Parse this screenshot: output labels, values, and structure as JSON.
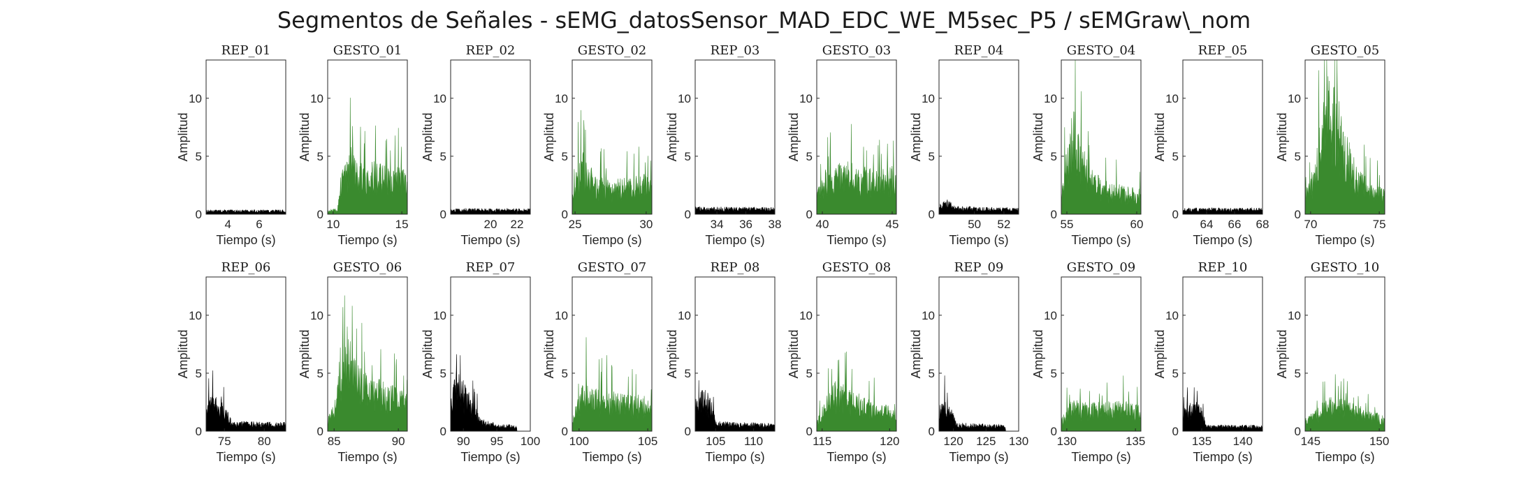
{
  "figure": {
    "title": "Segmentos de Señales - sEMG_datosSensor_MAD_EDC_WE_M5sec_P5 / sEMGraw\\_nom"
  },
  "colors": {
    "rep": "#000000",
    "gesto": "#3a8a2e",
    "axis": "#262626"
  },
  "chart_data": [
    {
      "type": "area",
      "title": "REP_01",
      "xlabel": "Tiempo (s)",
      "ylabel": "Amplitud",
      "xlim": [
        2.6,
        7.7
      ],
      "ylim": [
        0,
        13.3
      ],
      "xticks": [
        4,
        6
      ],
      "yticks": [
        0,
        5,
        10
      ],
      "color": "rep",
      "profile": [
        [
          2.6,
          0.35
        ],
        [
          7.7,
          0.35
        ]
      ]
    },
    {
      "type": "area",
      "title": "GESTO_01",
      "xlabel": "Tiempo (s)",
      "ylabel": "Amplitud",
      "xlim": [
        9.6,
        15.4
      ],
      "ylim": [
        0,
        13.3
      ],
      "xticks": [
        10,
        15
      ],
      "yticks": [
        0,
        5,
        10
      ],
      "color": "gesto",
      "profile": [
        [
          9.6,
          0.3
        ],
        [
          10.3,
          0.5
        ],
        [
          10.6,
          3.5
        ],
        [
          11.0,
          4.2
        ],
        [
          11.3,
          5.5
        ],
        [
          12.0,
          4.0
        ],
        [
          13.0,
          4.2
        ],
        [
          14.0,
          3.8
        ],
        [
          15.0,
          4.0
        ],
        [
          15.4,
          3.0
        ]
      ]
    },
    {
      "type": "area",
      "title": "REP_02",
      "xlabel": "Tiempo (s)",
      "ylabel": "Amplitud",
      "xlim": [
        17.0,
        23.0
      ],
      "ylim": [
        0,
        13.3
      ],
      "xticks": [
        20,
        22
      ],
      "yticks": [
        0,
        5,
        10
      ],
      "color": "rep",
      "profile": [
        [
          17.0,
          0.45
        ],
        [
          23.0,
          0.45
        ]
      ]
    },
    {
      "type": "area",
      "title": "GESTO_02",
      "xlabel": "Tiempo (s)",
      "ylabel": "Amplitud",
      "xlim": [
        24.8,
        30.4
      ],
      "ylim": [
        0,
        13.3
      ],
      "xticks": [
        25,
        30
      ],
      "yticks": [
        0,
        5,
        10
      ],
      "color": "gesto",
      "profile": [
        [
          24.8,
          2.0
        ],
        [
          25.3,
          4.5
        ],
        [
          25.6,
          5.0
        ],
        [
          26.5,
          3.0
        ],
        [
          28.0,
          2.8
        ],
        [
          30.0,
          3.2
        ],
        [
          30.4,
          2.5
        ]
      ]
    },
    {
      "type": "area",
      "title": "REP_03",
      "xlabel": "Tiempo (s)",
      "ylabel": "Amplitud",
      "xlim": [
        32.5,
        38.0
      ],
      "ylim": [
        0,
        13.3
      ],
      "xticks": [
        34,
        36,
        38
      ],
      "yticks": [
        0,
        5,
        10
      ],
      "color": "rep",
      "profile": [
        [
          32.5,
          0.6
        ],
        [
          38.0,
          0.55
        ]
      ]
    },
    {
      "type": "area",
      "title": "GESTO_03",
      "xlabel": "Tiempo (s)",
      "ylabel": "Amplitud",
      "xlim": [
        39.6,
        45.3
      ],
      "ylim": [
        0,
        13.3
      ],
      "xticks": [
        40,
        45
      ],
      "yticks": [
        0,
        5,
        10
      ],
      "color": "gesto",
      "profile": [
        [
          39.6,
          1.5
        ],
        [
          40.0,
          3.5
        ],
        [
          41.0,
          4.0
        ],
        [
          42.0,
          4.3
        ],
        [
          43.0,
          3.8
        ],
        [
          44.0,
          3.5
        ],
        [
          45.0,
          3.8
        ],
        [
          45.3,
          3.0
        ]
      ]
    },
    {
      "type": "area",
      "title": "REP_04",
      "xlabel": "Tiempo (s)",
      "ylabel": "Amplitud",
      "xlim": [
        47.6,
        53.0
      ],
      "ylim": [
        0,
        13.3
      ],
      "xticks": [
        50,
        52
      ],
      "yticks": [
        0,
        5,
        10
      ],
      "color": "rep",
      "profile": [
        [
          47.6,
          0.8
        ],
        [
          48.1,
          1.3
        ],
        [
          48.6,
          0.7
        ],
        [
          50.0,
          0.6
        ],
        [
          53.0,
          0.5
        ]
      ]
    },
    {
      "type": "area",
      "title": "GESTO_04",
      "xlabel": "Tiempo (s)",
      "ylabel": "Amplitud",
      "xlim": [
        54.6,
        60.3
      ],
      "ylim": [
        0,
        13.3
      ],
      "xticks": [
        55,
        60
      ],
      "yticks": [
        0,
        5,
        10
      ],
      "color": "gesto",
      "profile": [
        [
          54.6,
          2.0
        ],
        [
          55.2,
          7.0
        ],
        [
          55.5,
          10.0
        ],
        [
          55.8,
          7.0
        ],
        [
          56.5,
          4.0
        ],
        [
          58.0,
          2.5
        ],
        [
          60.3,
          2.0
        ]
      ]
    },
    {
      "type": "area",
      "title": "REP_05",
      "xlabel": "Tiempo (s)",
      "ylabel": "Amplitud",
      "xlim": [
        62.3,
        68.0
      ],
      "ylim": [
        0,
        13.3
      ],
      "xticks": [
        64,
        66,
        68
      ],
      "yticks": [
        0,
        5,
        10
      ],
      "color": "rep",
      "profile": [
        [
          62.3,
          0.5
        ],
        [
          68.0,
          0.5
        ]
      ]
    },
    {
      "type": "area",
      "title": "GESTO_05",
      "xlabel": "Tiempo (s)",
      "ylabel": "Amplitud",
      "xlim": [
        69.6,
        75.4
      ],
      "ylim": [
        0,
        13.3
      ],
      "xticks": [
        70,
        75
      ],
      "yticks": [
        0,
        5,
        10
      ],
      "color": "gesto",
      "profile": [
        [
          69.6,
          2.0
        ],
        [
          70.3,
          4.0
        ],
        [
          70.8,
          9.0
        ],
        [
          71.3,
          11.0
        ],
        [
          71.8,
          10.0
        ],
        [
          72.5,
          7.0
        ],
        [
          73.5,
          3.5
        ],
        [
          75.4,
          2.0
        ]
      ]
    },
    {
      "type": "area",
      "title": "REP_06",
      "xlabel": "Tiempo (s)",
      "ylabel": "Amplitud",
      "xlim": [
        72.7,
        82.7
      ],
      "ylim": [
        0,
        13.3
      ],
      "xticks": [
        75,
        80
      ],
      "yticks": [
        0,
        5,
        10
      ],
      "color": "rep",
      "profile": [
        [
          72.7,
          2.8
        ],
        [
          74.5,
          3.0
        ],
        [
          75.3,
          2.0
        ],
        [
          76.0,
          0.8
        ],
        [
          82.7,
          0.7
        ]
      ]
    },
    {
      "type": "area",
      "title": "GESTO_06",
      "xlabel": "Tiempo (s)",
      "ylabel": "Amplitud",
      "xlim": [
        84.5,
        90.7
      ],
      "ylim": [
        0,
        13.3
      ],
      "xticks": [
        85,
        90
      ],
      "yticks": [
        0,
        5,
        10
      ],
      "color": "gesto",
      "profile": [
        [
          84.5,
          1.0
        ],
        [
          85.2,
          3.0
        ],
        [
          85.5,
          7.0
        ],
        [
          86.0,
          8.5
        ],
        [
          86.5,
          6.0
        ],
        [
          87.5,
          4.5
        ],
        [
          89.0,
          4.0
        ],
        [
          90.7,
          3.0
        ]
      ]
    },
    {
      "type": "area",
      "title": "REP_07",
      "xlabel": "Tiempo (s)",
      "ylabel": "Amplitud",
      "xlim": [
        88.1,
        100.0
      ],
      "ylim": [
        0,
        13.3
      ],
      "xticks": [
        90,
        95,
        100
      ],
      "yticks": [
        0,
        5,
        10
      ],
      "color": "rep",
      "profile": [
        [
          88.1,
          3.0
        ],
        [
          89.0,
          5.0
        ],
        [
          90.0,
          4.0
        ],
        [
          91.5,
          2.5
        ],
        [
          92.5,
          1.0
        ],
        [
          95.0,
          0.6
        ],
        [
          98.0,
          0.5
        ],
        [
          98.01,
          0
        ],
        [
          100.0,
          0
        ]
      ]
    },
    {
      "type": "area",
      "title": "GESTO_07",
      "xlabel": "Tiempo (s)",
      "ylabel": "Amplitud",
      "xlim": [
        99.5,
        105.3
      ],
      "ylim": [
        0,
        13.3
      ],
      "xticks": [
        100,
        105
      ],
      "yticks": [
        0,
        5,
        10
      ],
      "color": "gesto",
      "profile": [
        [
          99.5,
          1.0
        ],
        [
          100.0,
          3.0
        ],
        [
          100.6,
          4.5
        ],
        [
          101.5,
          3.5
        ],
        [
          103.0,
          3.0
        ],
        [
          105.0,
          2.8
        ],
        [
          105.3,
          2.0
        ]
      ]
    },
    {
      "type": "area",
      "title": "REP_08",
      "xlabel": "Tiempo (s)",
      "ylabel": "Amplitud",
      "xlim": [
        102.3,
        112.8
      ],
      "ylim": [
        0,
        13.3
      ],
      "xticks": [
        105,
        110
      ],
      "yticks": [
        0,
        5,
        10
      ],
      "color": "rep",
      "profile": [
        [
          102.3,
          2.5
        ],
        [
          103.5,
          3.5
        ],
        [
          104.5,
          2.5
        ],
        [
          105.0,
          0.8
        ],
        [
          112.8,
          0.6
        ]
      ]
    },
    {
      "type": "area",
      "title": "GESTO_08",
      "xlabel": "Tiempo (s)",
      "ylabel": "Amplitud",
      "xlim": [
        114.6,
        120.5
      ],
      "ylim": [
        0,
        13.3
      ],
      "xticks": [
        115,
        120
      ],
      "yticks": [
        0,
        5,
        10
      ],
      "color": "gesto",
      "profile": [
        [
          114.6,
          1.0
        ],
        [
          115.2,
          2.5
        ],
        [
          116.0,
          4.0
        ],
        [
          117.0,
          3.5
        ],
        [
          118.5,
          2.5
        ],
        [
          120.0,
          2.0
        ],
        [
          120.5,
          1.5
        ]
      ]
    },
    {
      "type": "area",
      "title": "REP_09",
      "xlabel": "Tiempo (s)",
      "ylabel": "Amplitud",
      "xlim": [
        117.8,
        130.0
      ],
      "ylim": [
        0,
        13.3
      ],
      "xticks": [
        120,
        125,
        130
      ],
      "yticks": [
        0,
        5,
        10
      ],
      "color": "rep",
      "profile": [
        [
          117.8,
          2.0
        ],
        [
          118.5,
          2.8
        ],
        [
          119.5,
          2.0
        ],
        [
          120.5,
          0.7
        ],
        [
          128.0,
          0.5
        ],
        [
          128.01,
          0
        ],
        [
          130.0,
          0
        ]
      ]
    },
    {
      "type": "area",
      "title": "GESTO_09",
      "xlabel": "Tiempo (s)",
      "ylabel": "Amplitud",
      "xlim": [
        129.6,
        135.4
      ],
      "ylim": [
        0,
        13.3
      ],
      "xticks": [
        130,
        135
      ],
      "yticks": [
        0,
        5,
        10
      ],
      "color": "gesto",
      "profile": [
        [
          129.6,
          1.0
        ],
        [
          130.3,
          2.5
        ],
        [
          132.0,
          2.3
        ],
        [
          134.0,
          2.5
        ],
        [
          135.4,
          2.0
        ]
      ]
    },
    {
      "type": "area",
      "title": "REP_10",
      "xlabel": "Tiempo (s)",
      "ylabel": "Amplitud",
      "xlim": [
        132.7,
        142.4
      ],
      "ylim": [
        0,
        13.3
      ],
      "xticks": [
        135,
        140
      ],
      "yticks": [
        0,
        5,
        10
      ],
      "color": "rep",
      "profile": [
        [
          132.7,
          1.8
        ],
        [
          134.0,
          2.5
        ],
        [
          135.0,
          2.0
        ],
        [
          135.5,
          0.5
        ],
        [
          142.4,
          0.5
        ]
      ]
    },
    {
      "type": "area",
      "title": "GESTO_10",
      "xlabel": "Tiempo (s)",
      "ylabel": "Amplitud",
      "xlim": [
        144.6,
        150.4
      ],
      "ylim": [
        0,
        13.3
      ],
      "xticks": [
        145,
        150
      ],
      "yticks": [
        0,
        5,
        10
      ],
      "color": "gesto",
      "profile": [
        [
          144.6,
          1.0
        ],
        [
          145.5,
          2.0
        ],
        [
          146.5,
          2.8
        ],
        [
          147.5,
          2.5
        ],
        [
          149.0,
          1.8
        ],
        [
          150.4,
          1.3
        ]
      ]
    }
  ]
}
